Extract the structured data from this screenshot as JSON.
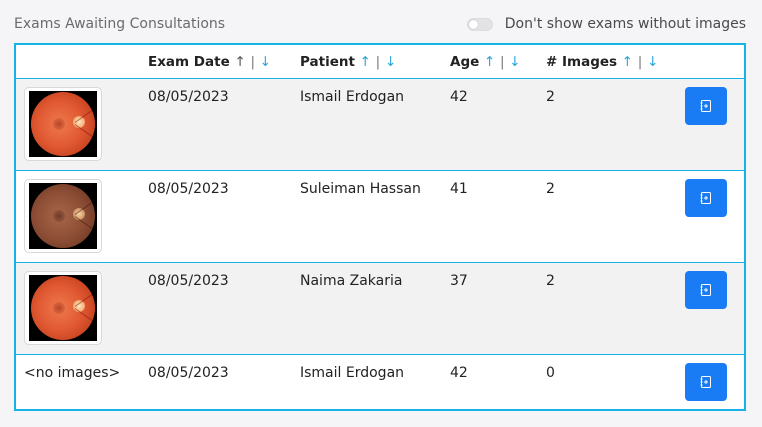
{
  "header": {
    "title": "Exams Awaiting Consultations",
    "toggle_label": "Don't show exams without images",
    "toggle_on": false
  },
  "table": {
    "columns": [
      {
        "label": "Exam Date",
        "sort_up": "↑",
        "sep": "|",
        "sort_down": "↓"
      },
      {
        "label": "Patient",
        "sort_up": "↑",
        "sep": "|",
        "sort_down": "↓"
      },
      {
        "label": "Age",
        "sort_up": "↑",
        "sep": "|",
        "sort_down": "↓"
      },
      {
        "label": "# Images",
        "sort_up": "↑",
        "sep": "|",
        "sort_down": "↓"
      }
    ],
    "rows": [
      {
        "thumb": "fundus-orange",
        "no_images_text": "",
        "exam_date": "08/05/2023",
        "patient": "Ismail Erdogan",
        "age": "42",
        "images": "2"
      },
      {
        "thumb": "fundus-brown",
        "no_images_text": "",
        "exam_date": "08/05/2023",
        "patient": "Suleiman Hassan",
        "age": "41",
        "images": "2"
      },
      {
        "thumb": "fundus-orange",
        "no_images_text": "",
        "exam_date": "08/05/2023",
        "patient": "Naima Zakaria",
        "age": "37",
        "images": "2"
      },
      {
        "thumb": "",
        "no_images_text": "<no images>",
        "exam_date": "08/05/2023",
        "patient": "Ismail Erdogan",
        "age": "42",
        "images": "0"
      }
    ]
  },
  "colors": {
    "accent_border": "#17b3e6",
    "button_blue": "#1a7cf5",
    "sort_arrow": "#2aa5dc",
    "row_shade": "#f2f2f2"
  },
  "icons": {
    "action_button": "open-consultation-icon"
  }
}
